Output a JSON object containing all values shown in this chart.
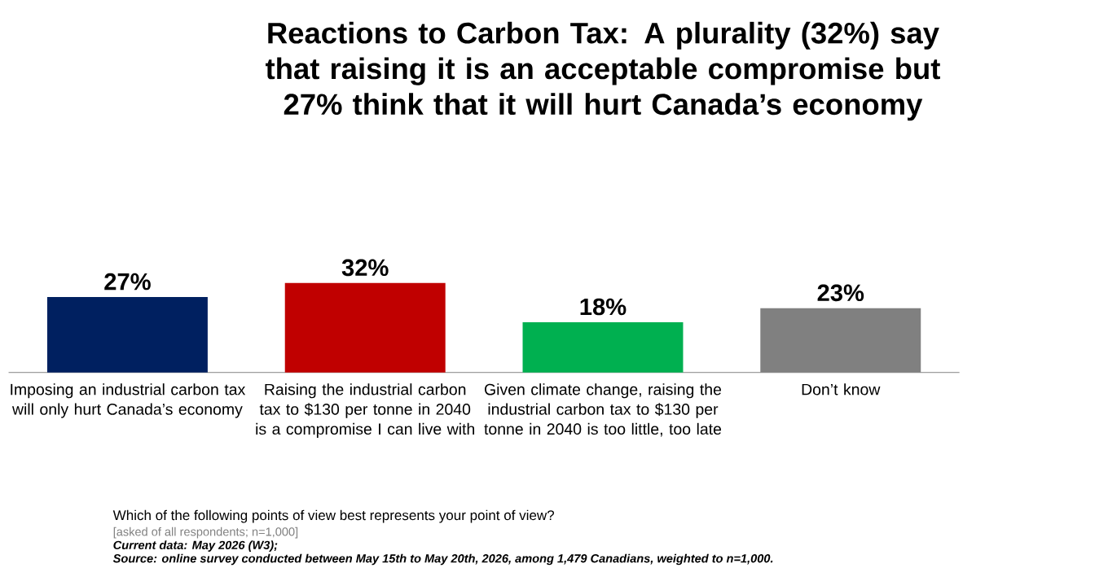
{
  "chart_data": {
    "type": "bar",
    "title": "Reactions to Carbon Tax: A plurality (32%) say that raising it is an acceptable compromise but 27% think that it will hurt Canada’s economy",
    "categories": [
      "Imposing an industrial carbon tax will only hurt Canada’s economy",
      "Raising the industrial carbon tax to $130 per tonne in 2040 is a compromise I can live with",
      "Given climate change, raising the industrial carbon tax to $130 per tonne in 2040 is too little, too late",
      "Don’t know"
    ],
    "values": [
      27,
      32,
      18,
      23
    ],
    "colors": [
      "#002060",
      "#c00000",
      "#00b050",
      "#808080"
    ],
    "value_labels": [
      "27%",
      "32%",
      "18%",
      "23%"
    ],
    "grid": false,
    "annotations": [
      "Which of the following points of view best represents your point of view?",
      "[asked of all respondents; n=1,000]",
      "Current data: May 2026 (W3);",
      "Source: online survey conducted between May 15th to May 20th, 2026, among 1,479 Canadians, weighted to n=1,000."
    ]
  }
}
